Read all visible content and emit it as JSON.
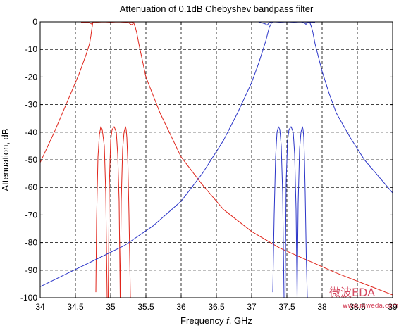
{
  "chart_data": {
    "type": "line",
    "title": "Attenuation of 0.1dB Chebyshev bandpass filter",
    "xlabel_prefix": "Frequency ",
    "xlabel_var": "f",
    "xlabel_suffix": ", GHz",
    "ylabel": "Attenuation, dB",
    "xlim": [
      34,
      39
    ],
    "ylim": [
      -100,
      0
    ],
    "xticks": [
      34,
      34.5,
      35,
      35.5,
      36,
      36.5,
      37,
      37.5,
      38,
      38.5,
      39
    ],
    "yticks": [
      0,
      -10,
      -20,
      -30,
      -40,
      -50,
      -60,
      -70,
      -80,
      -90,
      -100
    ],
    "grid": true,
    "grid_style": "dashed",
    "series": [
      {
        "color": "#e0251b",
        "curves": [
          {
            "x": [
              34.0,
              34.2,
              34.4,
              34.55,
              34.65,
              34.7,
              34.72,
              34.73,
              34.74,
              34.745,
              34.75,
              34.8,
              34.9,
              35.0,
              35.1,
              35.2,
              35.3,
              35.33,
              35.35,
              35.37,
              35.4,
              35.45,
              35.5,
              35.7,
              36.0,
              36.3,
              36.6,
              37.0,
              37.4,
              37.8,
              38.2,
              38.6,
              39.0
            ],
            "y": [
              -51,
              -40,
              -28,
              -19,
              -12,
              -8,
              -5,
              -3,
              -1.5,
              -0.6,
              -0.1,
              -0.1,
              0,
              -0.1,
              0,
              -0.1,
              -0.1,
              -0.6,
              -2,
              -4,
              -8,
              -14,
              -20,
              -33,
              -49,
              -59,
              -68,
              -76,
              -82,
              -86.5,
              -91,
              -95,
              -99
            ]
          },
          {
            "x": [
              34.58,
              34.62,
              34.65,
              34.7,
              34.73,
              34.745,
              34.76,
              34.8,
              34.9,
              35.0,
              35.1,
              35.2,
              35.26,
              35.28,
              35.3,
              35.32,
              35.33
            ],
            "y": [
              -0.2,
              -0.2,
              -0.1,
              -0.3,
              -0.8,
              -0.2,
              0,
              -0.1,
              0,
              -0.1,
              0,
              -0.1,
              -0.4,
              -0.8,
              -1.1,
              -0.5,
              -0.1
            ]
          },
          {
            "x": [
              34.79,
              34.8,
              34.82,
              34.84,
              34.86,
              34.88,
              34.91,
              34.93,
              34.95,
              34.965,
              34.98,
              35.0,
              35.02,
              35.05,
              35.08,
              35.1,
              35.12,
              35.135,
              35.15,
              35.17,
              35.19,
              35.21,
              35.22,
              35.23,
              35.245,
              35.26,
              35.27,
              35.28,
              35.29
            ],
            "y": [
              -98,
              -72,
              -49,
              -41,
              -38,
              -39,
              -45,
              -62,
              -100,
              -100,
              -60,
              -43,
              -39,
              -38,
              -40,
              -48,
              -65,
              -100,
              -65,
              -46,
              -40,
              -38,
              -39,
              -42,
              -52,
              -70,
              -85,
              -100,
              -100
            ]
          }
        ]
      },
      {
        "color": "#2b35c8",
        "curves": [
          {
            "x": [
              34.0,
              34.4,
              34.8,
              35.2,
              35.6,
              36.0,
              36.3,
              36.6,
              36.8,
              37.0,
              37.1,
              37.2,
              37.22,
              37.25,
              37.28,
              37.3,
              37.35,
              37.4,
              37.5,
              37.6,
              37.7,
              37.8,
              37.83,
              37.85,
              37.87,
              37.9,
              37.95,
              38.0,
              38.1,
              38.2,
              38.4,
              38.6,
              38.8,
              39.0
            ],
            "y": [
              -96,
              -91,
              -86,
              -81,
              -74,
              -65,
              -55,
              -43,
              -33,
              -22,
              -15,
              -7,
              -5,
              -2,
              -0.5,
              0,
              0,
              -0.1,
              0,
              -0.1,
              0,
              -0.1,
              -0.5,
              -2,
              -4,
              -8,
              -13,
              -18,
              -26,
              -33,
              -42,
              -50,
              -56,
              -62
            ]
          },
          {
            "x": [
              37.1,
              37.15,
              37.2,
              37.22,
              37.24,
              37.26,
              37.28,
              37.3,
              37.4,
              37.5,
              37.6,
              37.7,
              37.75,
              37.77,
              37.8,
              37.82,
              37.85,
              37.9
            ],
            "y": [
              -0.1,
              -0.4,
              -0.8,
              -1.2,
              -0.6,
              -0.2,
              -0.1,
              0,
              -0.1,
              0,
              -0.1,
              0,
              -0.4,
              -0.9,
              -0.2,
              -0.1,
              -0.3,
              -0.2
            ]
          },
          {
            "x": [
              37.3,
              37.32,
              37.34,
              37.36,
              37.38,
              37.4,
              37.42,
              37.44,
              37.46,
              37.475,
              37.49,
              37.51,
              37.53,
              37.56,
              37.59,
              37.61,
              37.63,
              37.645,
              37.66,
              37.68,
              37.7,
              37.72,
              37.73,
              37.74,
              37.75,
              37.76,
              37.775,
              37.79
            ],
            "y": [
              -98,
              -70,
              -49,
              -40,
              -38,
              -39,
              -45,
              -62,
              -100,
              -100,
              -58,
              -43,
              -39,
              -38,
              -40,
              -48,
              -68,
              -100,
              -66,
              -46,
              -40,
              -38,
              -39,
              -42,
              -50,
              -62,
              -85,
              -100
            ]
          }
        ]
      }
    ]
  },
  "watermark": {
    "chinese": "微波EDA",
    "url": "www.mweda.com"
  }
}
